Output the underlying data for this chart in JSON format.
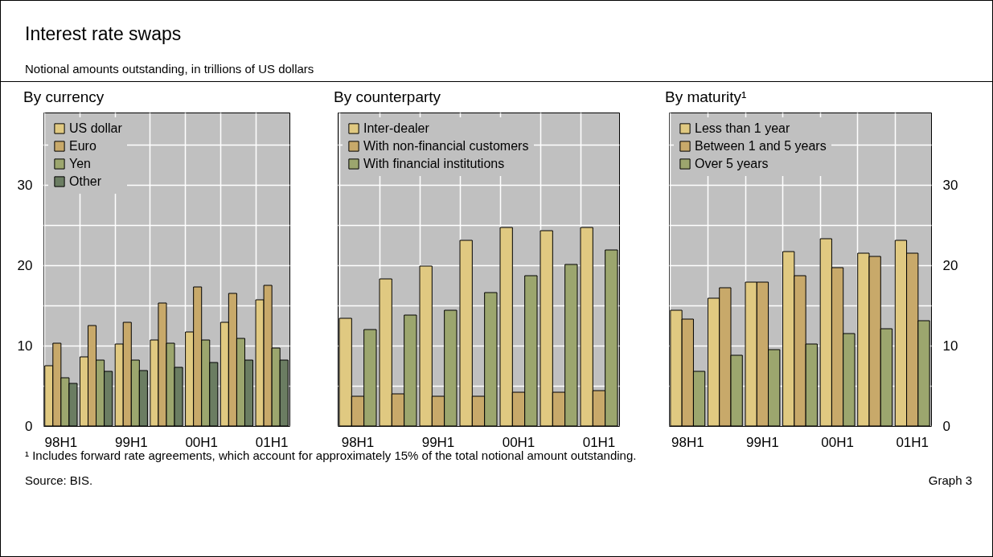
{
  "chart_data": [
    {
      "type": "bar",
      "title": "By currency",
      "categories": [
        "98H1",
        null,
        "99H1",
        null,
        "00H1",
        null,
        "01H1"
      ],
      "series": [
        {
          "name": "US dollar",
          "color": "#e0c981",
          "values": [
            7.5,
            8.6,
            10.2,
            10.7,
            11.7,
            12.9,
            15.7
          ]
        },
        {
          "name": "Euro",
          "color": "#c8a96a",
          "values": [
            10.3,
            12.5,
            12.9,
            15.3,
            17.3,
            16.5,
            17.5
          ]
        },
        {
          "name": "Yen",
          "color": "#9ca66e",
          "values": [
            6.0,
            8.2,
            8.2,
            10.3,
            10.7,
            10.9,
            9.7
          ]
        },
        {
          "name": "Other",
          "color": "#6b7d62",
          "values": [
            5.3,
            6.8,
            6.9,
            7.3,
            7.9,
            8.2,
            8.2
          ]
        }
      ],
      "ylim": [
        0,
        39
      ],
      "yticks": [
        0,
        {
          "value": 5,
          "label": null
        },
        10,
        {
          "value": 15,
          "label": null
        },
        20,
        {
          "value": 25,
          "label": null
        },
        30,
        {
          "value": 35,
          "label": null
        }
      ],
      "grid": true,
      "legend": "top left",
      "annotations": [
        "Interest rate swaps",
        "Notional amounts outstanding, in trillions of US dollars",
        "¹  Includes forward rate agreements, which account for approximately 15% of the total notional amount outstanding.",
        "Source: BIS.",
        "Graph 3"
      ]
    },
    {
      "type": "bar",
      "title": "By counterparty",
      "categories": [
        "98H1",
        null,
        "99H1",
        null,
        "00H1",
        null,
        "01H1"
      ],
      "series": [
        {
          "name": "Inter-dealer",
          "color": "#e0c981",
          "values": [
            13.4,
            18.3,
            19.9,
            23.1,
            24.7,
            24.3,
            24.7
          ]
        },
        {
          "name": "With non-financial customers",
          "color": "#c8a96a",
          "values": [
            3.7,
            4.0,
            3.7,
            3.7,
            4.2,
            4.2,
            4.4
          ]
        },
        {
          "name": "With financial institutions",
          "color": "#9ca66e",
          "values": [
            12.0,
            13.8,
            14.4,
            16.6,
            18.7,
            20.1,
            21.9
          ]
        }
      ],
      "ylim": [
        0,
        39
      ],
      "yticks": [
        0,
        {
          "value": 5,
          "label": null
        },
        10,
        {
          "value": 15,
          "label": null
        },
        20,
        {
          "value": 25,
          "label": null
        },
        30,
        {
          "value": 35,
          "label": null
        }
      ],
      "grid": true,
      "legend": "top left",
      "tick_labels": "x"
    },
    {
      "type": "bar",
      "title": "By maturity¹",
      "categories": [
        "98H1",
        null,
        "99H1",
        null,
        "00H1",
        null,
        "01H1"
      ],
      "series": [
        {
          "name": "Less than 1 year",
          "color": "#e0c981",
          "values": [
            14.4,
            15.9,
            17.9,
            21.7,
            23.3,
            21.5,
            23.1
          ]
        },
        {
          "name": "Between 1 and 5 years",
          "color": "#c8a96a",
          "values": [
            13.3,
            17.2,
            17.9,
            18.7,
            19.7,
            21.1,
            21.5
          ]
        },
        {
          "name": "Over 5 years",
          "color": "#9ca66e",
          "values": [
            6.8,
            8.8,
            9.5,
            10.2,
            11.5,
            12.1,
            13.1
          ]
        }
      ],
      "ylim": [
        0,
        39
      ],
      "yticks": [
        0,
        {
          "value": 5,
          "label": null
        },
        10,
        {
          "value": 15,
          "label": null
        },
        20,
        {
          "value": 25,
          "label": null
        },
        30,
        {
          "value": 35,
          "label": null
        }
      ],
      "grid": true,
      "legend": "top left"
    }
  ]
}
